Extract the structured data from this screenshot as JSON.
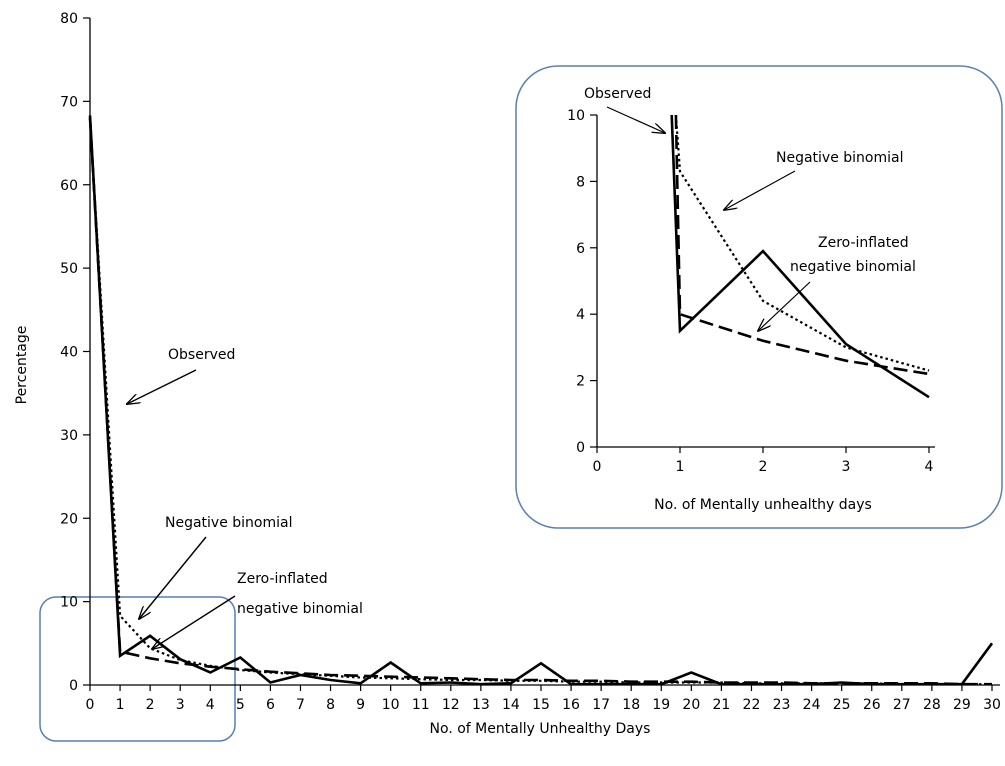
{
  "chart_data": [
    {
      "type": "line",
      "xlabel": "No. of Mentally Unhealthy Days",
      "ylabel": "Percentage",
      "xlim": [
        0,
        30
      ],
      "ylim": [
        0,
        80
      ],
      "x_ticks": [
        0,
        1,
        2,
        3,
        4,
        5,
        6,
        7,
        8,
        9,
        10,
        11,
        12,
        13,
        14,
        15,
        16,
        17,
        18,
        19,
        20,
        21,
        22,
        23,
        24,
        25,
        26,
        27,
        28,
        29,
        30
      ],
      "y_ticks": [
        0,
        10,
        20,
        30,
        40,
        50,
        60,
        70,
        80
      ],
      "grid": false,
      "series": [
        {
          "id": "observed",
          "style": "solid",
          "x": [
            0,
            1,
            2,
            3,
            4,
            5,
            6,
            7,
            8,
            9,
            10,
            11,
            12,
            13,
            14,
            15,
            16,
            17,
            18,
            19,
            20,
            21,
            22,
            23,
            24,
            25,
            26,
            27,
            28,
            29,
            30
          ],
          "values": [
            68.3,
            3.5,
            5.9,
            3.1,
            1.5,
            3.3,
            0.3,
            1.2,
            0.6,
            0.2,
            2.7,
            0.2,
            0.3,
            0.1,
            0.2,
            2.6,
            0.1,
            0.1,
            0.1,
            0.1,
            1.5,
            0.1,
            0.1,
            0.1,
            0.1,
            0.3,
            0.1,
            0.1,
            0.1,
            0.1,
            5.0
          ]
        },
        {
          "id": "negative-binomial",
          "style": "dotted",
          "x": [
            0,
            1,
            2,
            3,
            4,
            5,
            6,
            7,
            8,
            9,
            10,
            11,
            12,
            13,
            14,
            15,
            16,
            17,
            18,
            19,
            20,
            21,
            22,
            23,
            24,
            25,
            26,
            27,
            28,
            29,
            30
          ],
          "values": [
            68.0,
            8.3,
            4.4,
            3.0,
            2.3,
            1.8,
            1.5,
            1.3,
            1.1,
            0.9,
            0.8,
            0.7,
            0.6,
            0.6,
            0.5,
            0.5,
            0.4,
            0.4,
            0.3,
            0.3,
            0.3,
            0.3,
            0.2,
            0.2,
            0.2,
            0.2,
            0.2,
            0.1,
            0.1,
            0.1,
            0.1
          ]
        },
        {
          "id": "zero-inflated-negative-binomial",
          "style": "dashed",
          "x": [
            0,
            1,
            2,
            3,
            4,
            5,
            6,
            7,
            8,
            9,
            10,
            11,
            12,
            13,
            14,
            15,
            16,
            17,
            18,
            19,
            20,
            21,
            22,
            23,
            24,
            25,
            26,
            27,
            28,
            29,
            30
          ],
          "values": [
            68.0,
            4.0,
            3.2,
            2.6,
            2.2,
            1.9,
            1.6,
            1.4,
            1.2,
            1.1,
            1.0,
            0.9,
            0.8,
            0.7,
            0.6,
            0.6,
            0.5,
            0.5,
            0.4,
            0.4,
            0.4,
            0.3,
            0.3,
            0.3,
            0.2,
            0.2,
            0.2,
            0.2,
            0.2,
            0.1,
            0.1
          ]
        }
      ],
      "annotations": [
        {
          "id": "observed",
          "text": "Observed"
        },
        {
          "id": "negative-binomial",
          "text": "Negative binomial"
        },
        {
          "id": "zero-inflated-1",
          "text": "Zero-inflated"
        },
        {
          "id": "zero-inflated-2",
          "text": "negative binomial"
        }
      ]
    },
    {
      "type": "line",
      "xlabel": "No. of Mentally unhealthy days",
      "ylabel": "",
      "xlim": [
        0,
        4
      ],
      "ylim": [
        0,
        10
      ],
      "x_ticks": [
        0,
        1,
        2,
        3,
        4
      ],
      "y_ticks": [
        0,
        2,
        4,
        6,
        8,
        10
      ],
      "grid": false,
      "series": [
        {
          "id": "observed",
          "style": "solid",
          "x": [
            0.9,
            1,
            2,
            3,
            4
          ],
          "values": [
            10,
            3.5,
            5.9,
            3.1,
            1.5
          ]
        },
        {
          "id": "negative-binomial",
          "style": "dotted",
          "x": [
            0.95,
            1,
            2,
            3,
            4
          ],
          "values": [
            10,
            8.3,
            4.4,
            3.0,
            2.3
          ]
        },
        {
          "id": "zero-inflated-negative-binomial",
          "style": "dashed",
          "x": [
            0.95,
            1,
            2,
            3,
            4
          ],
          "values": [
            10,
            4.0,
            3.2,
            2.6,
            2.2
          ]
        }
      ],
      "annotations": [
        {
          "id": "observed",
          "text": "Observed"
        },
        {
          "id": "negative-binomial",
          "text": "Negative binomial"
        },
        {
          "id": "zero-inflated-1",
          "text": "Zero-inflated"
        },
        {
          "id": "zero-inflated-2",
          "text": "negative binomial"
        }
      ]
    }
  ]
}
